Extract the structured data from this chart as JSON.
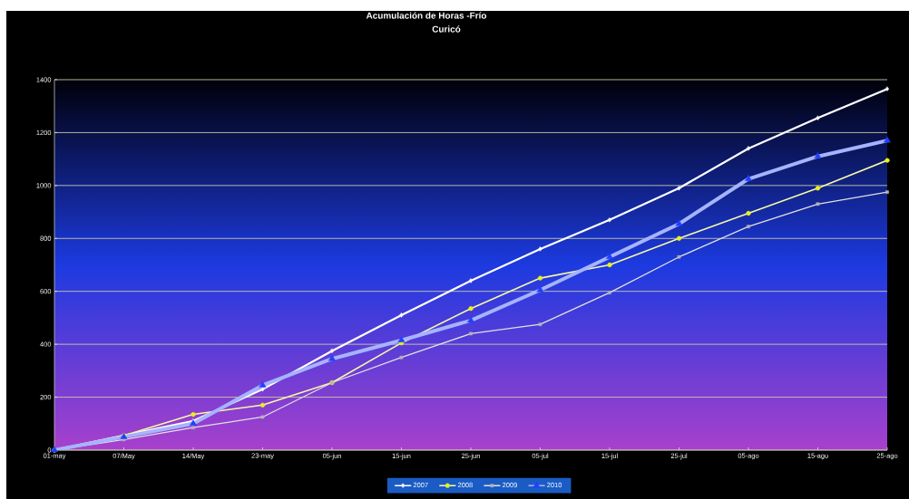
{
  "chart_data": {
    "type": "line",
    "title": "Acumulación de Horas -Frío",
    "subtitle": "Curicó",
    "categories": [
      "01-may",
      "07/May",
      "14/May",
      "23-may",
      "05-jun",
      "15-jun",
      "25-jun",
      "05-jul",
      "15-jul",
      "25-jul",
      "05-ago",
      "15-ago",
      "25-ago"
    ],
    "series": [
      {
        "name": "2007",
        "color": "#ffffff",
        "marker": "diamond",
        "values": [
          0,
          55,
          110,
          230,
          375,
          510,
          640,
          760,
          870,
          990,
          1140,
          1255,
          1365
        ]
      },
      {
        "name": "2008",
        "color": "#e8f020",
        "marker": "circle",
        "values": [
          0,
          55,
          135,
          170,
          255,
          405,
          535,
          650,
          700,
          800,
          895,
          990,
          1095
        ]
      },
      {
        "name": "2009",
        "color": "#b4b4b4",
        "marker": "square",
        "values": [
          0,
          40,
          85,
          125,
          255,
          350,
          440,
          475,
          595,
          730,
          845,
          930,
          975
        ]
      },
      {
        "name": "2010",
        "color": "#2040ff",
        "marker": "triangle",
        "values": [
          0,
          50,
          100,
          245,
          345,
          415,
          490,
          605,
          730,
          855,
          1025,
          1110,
          1170
        ]
      }
    ],
    "ylim": [
      0,
      1400
    ],
    "yticks": [
      0,
      200,
      400,
      600,
      800,
      1000,
      1200,
      1400
    ],
    "grid": "y",
    "legend": "bottom"
  }
}
